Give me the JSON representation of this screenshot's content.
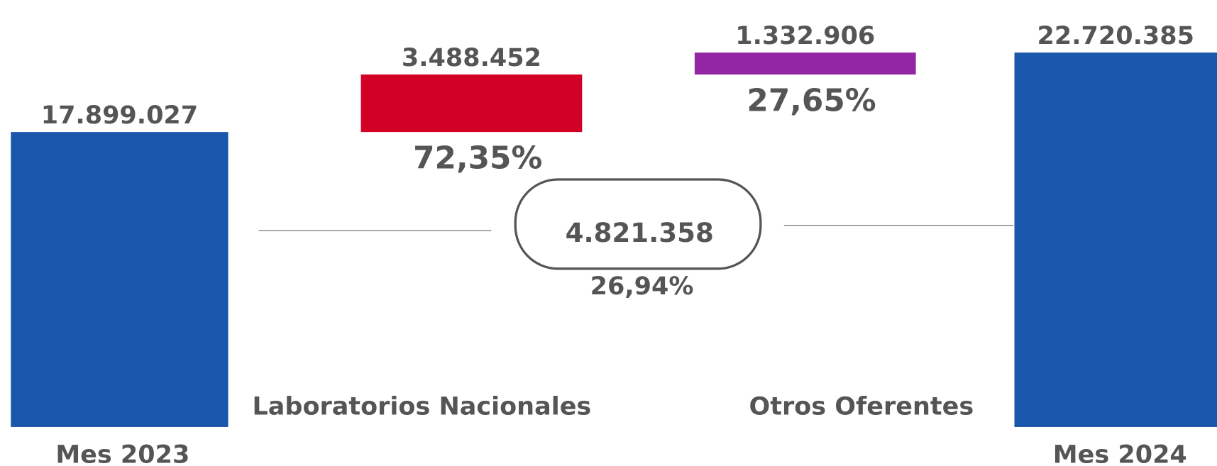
{
  "chart_data": {
    "type": "waterfall",
    "categories": [
      "Mes 2023",
      "Laboratorios Nacionales",
      "Otros Oferentes",
      "Mes 2024"
    ],
    "values": [
      17899027,
      3488452,
      1332906,
      22720385
    ],
    "value_labels": [
      "17.899.027",
      "3.488.452",
      "1.332.906",
      "22.720.385"
    ],
    "colors": [
      "#1a56ab",
      "#d10024",
      "#9226a4",
      "#1a56ab"
    ],
    "share_labels": [
      null,
      "72,35%",
      "27,65%",
      null
    ],
    "change_label": "4.821.358",
    "change_percent_label": "26,94%",
    "ylim": [
      0,
      25000000
    ]
  }
}
